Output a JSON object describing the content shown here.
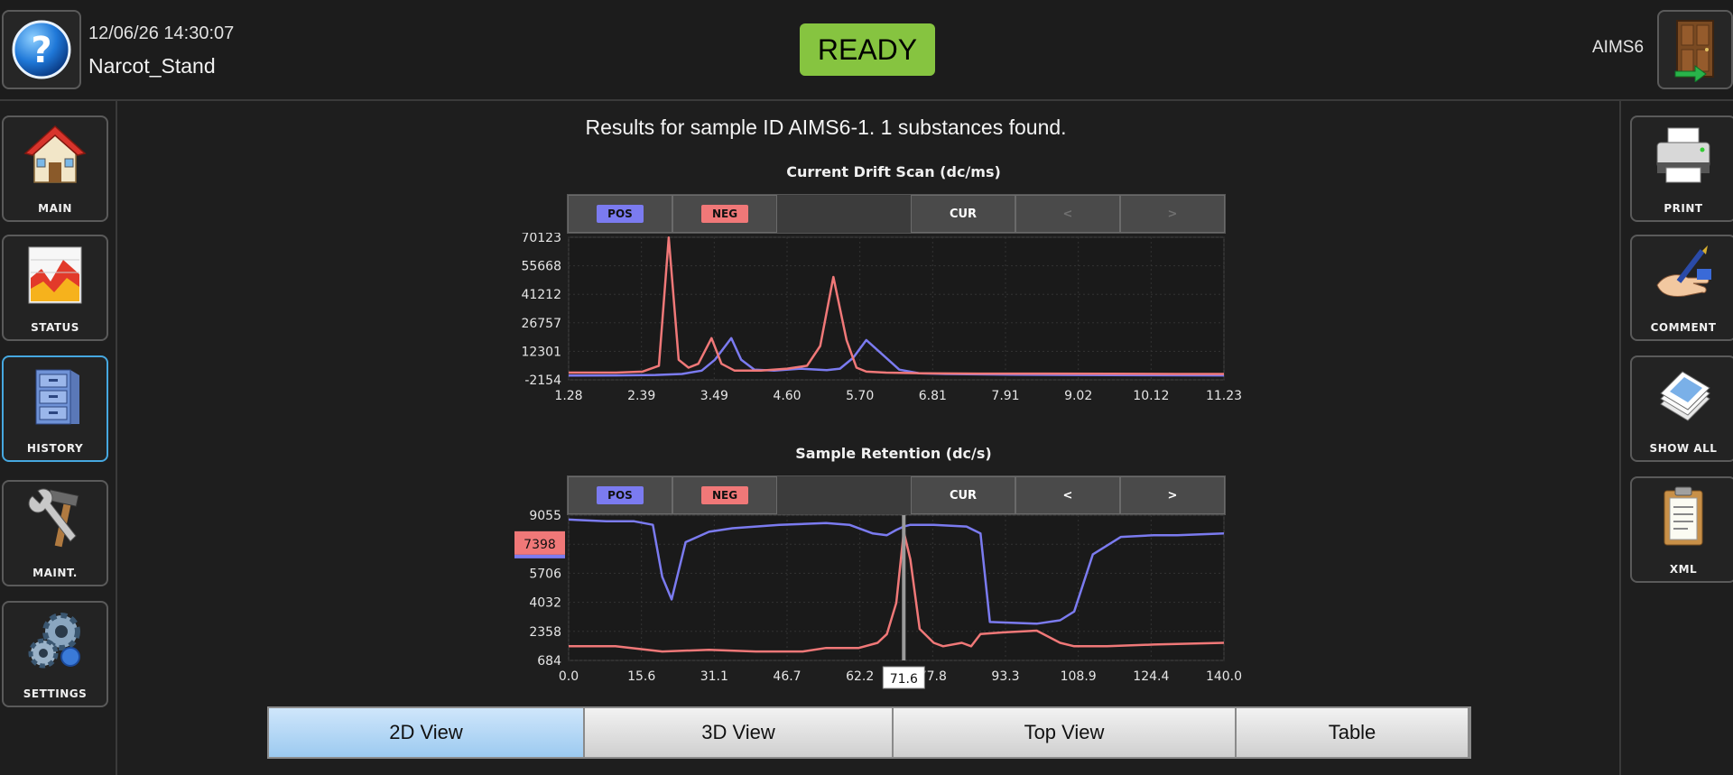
{
  "header": {
    "datetime": "12/06/26 14:30:07",
    "profile": "Narcot_Stand",
    "status": "READY",
    "instrument": "AIMS6",
    "help_icon": "help-question-icon",
    "exit_icon": "exit-door-icon"
  },
  "left_nav": [
    {
      "label": "MAIN",
      "icon": "house-icon"
    },
    {
      "label": "STATUS",
      "icon": "status-chart-icon"
    },
    {
      "label": "HISTORY",
      "icon": "file-cabinet-icon",
      "active": true
    },
    {
      "label": "MAINT.",
      "icon": "wrench-hammer-icon"
    },
    {
      "label": "SETTINGS",
      "icon": "gears-icon"
    }
  ],
  "right_nav": [
    {
      "label": "PRINT",
      "icon": "printer-icon"
    },
    {
      "label": "COMMENT",
      "icon": "pen-hand-icon"
    },
    {
      "label": "SHOW ALL",
      "icon": "documents-stack-icon"
    },
    {
      "label": "XML",
      "icon": "clipboard-icon"
    }
  ],
  "results_title": "Results for sample ID AIMS6-1. 1 substances found.",
  "toolbar_labels": {
    "pos": "POS",
    "neg": "NEG",
    "cur": "CUR",
    "prev": "<",
    "next": ">"
  },
  "colors": {
    "pos": "#7b7bf0",
    "neg": "#f07878",
    "ready": "#86c440",
    "active_tab": "#9ccaf0"
  },
  "chart_data": [
    {
      "type": "line",
      "title": "Current Drift Scan (dc/ms)",
      "x_ticks": [
        "1.28",
        "2.39",
        "3.49",
        "4.60",
        "5.70",
        "6.81",
        "7.91",
        "9.02",
        "10.12",
        "11.23"
      ],
      "y_ticks": [
        "70123",
        "55668",
        "41212",
        "26757",
        "12301",
        "-2154"
      ],
      "xlim": [
        1.28,
        11.23
      ],
      "ylim": [
        -2154,
        70123
      ],
      "grid": true,
      "series": [
        {
          "name": "POS",
          "color": "#7b7bf0",
          "x": [
            1.28,
            2.0,
            2.6,
            3.0,
            3.3,
            3.5,
            3.75,
            3.9,
            4.1,
            4.4,
            4.8,
            5.2,
            5.4,
            5.6,
            5.8,
            6.1,
            6.3,
            6.6,
            7.0,
            8.0,
            9.0,
            10.0,
            11.23
          ],
          "y": [
            0,
            100,
            300,
            800,
            2500,
            8000,
            19000,
            8000,
            3000,
            2500,
            3500,
            2800,
            3500,
            9000,
            18000,
            9000,
            3000,
            1200,
            800,
            500,
            300,
            200,
            100
          ]
        },
        {
          "name": "NEG",
          "color": "#f07878",
          "x": [
            1.28,
            2.0,
            2.4,
            2.65,
            2.8,
            2.95,
            3.1,
            3.25,
            3.45,
            3.6,
            3.8,
            4.2,
            4.6,
            4.9,
            5.1,
            5.3,
            5.5,
            5.65,
            5.8,
            6.1,
            6.6,
            7.5,
            8.5,
            9.5,
            10.5,
            11.23
          ],
          "y": [
            1500,
            1500,
            2000,
            5000,
            70000,
            8000,
            4000,
            6000,
            19000,
            6000,
            2500,
            2500,
            3500,
            5000,
            15000,
            50000,
            18000,
            4000,
            2000,
            1500,
            1200,
            1000,
            1000,
            900,
            800,
            800
          ]
        }
      ]
    },
    {
      "type": "line",
      "title": "Sample Retention (dc/s)",
      "x_ticks": [
        "0.0",
        "15.6",
        "31.1",
        "46.7",
        "62.2",
        "77.8",
        "93.3",
        "108.9",
        "124.4",
        "140.0"
      ],
      "y_ticks": [
        "9055",
        "",
        "5706",
        "4032",
        "2358",
        "684"
      ],
      "xlim": [
        0,
        140
      ],
      "ylim": [
        684,
        9055
      ],
      "cursor": {
        "x": 71.6,
        "label": "71.6",
        "value_label": "7398"
      },
      "series": [
        {
          "name": "POS",
          "color": "#7b7bf0",
          "x": [
            0,
            8,
            14,
            18,
            20,
            22,
            25,
            30,
            35,
            45,
            55,
            60,
            65,
            68,
            70,
            71.6,
            73,
            78,
            85,
            88,
            90,
            100,
            105,
            108,
            112,
            118,
            125,
            130,
            140
          ],
          "y": [
            8800,
            8700,
            8700,
            8500,
            5500,
            4200,
            7500,
            8100,
            8300,
            8500,
            8600,
            8500,
            8000,
            7900,
            8200,
            8400,
            8500,
            8500,
            8400,
            8000,
            2900,
            2800,
            3000,
            3500,
            6800,
            7800,
            7900,
            7900,
            8000
          ]
        },
        {
          "name": "NEG",
          "color": "#f07878",
          "x": [
            0,
            10,
            20,
            30,
            40,
            50,
            55,
            62,
            66,
            68,
            70,
            71.6,
            73,
            75,
            78,
            80,
            84,
            86,
            88,
            93,
            100,
            105,
            108,
            115,
            125,
            140
          ],
          "y": [
            1500,
            1500,
            1200,
            1300,
            1200,
            1200,
            1400,
            1400,
            1700,
            2200,
            4000,
            8100,
            6500,
            2500,
            1700,
            1500,
            1700,
            1500,
            2200,
            2300,
            2400,
            1700,
            1500,
            1500,
            1600,
            1700
          ]
        }
      ]
    }
  ],
  "view_tabs": [
    {
      "label": "2D View",
      "active": true
    },
    {
      "label": "3D View"
    },
    {
      "label": "Top View"
    },
    {
      "label": "Table"
    }
  ]
}
